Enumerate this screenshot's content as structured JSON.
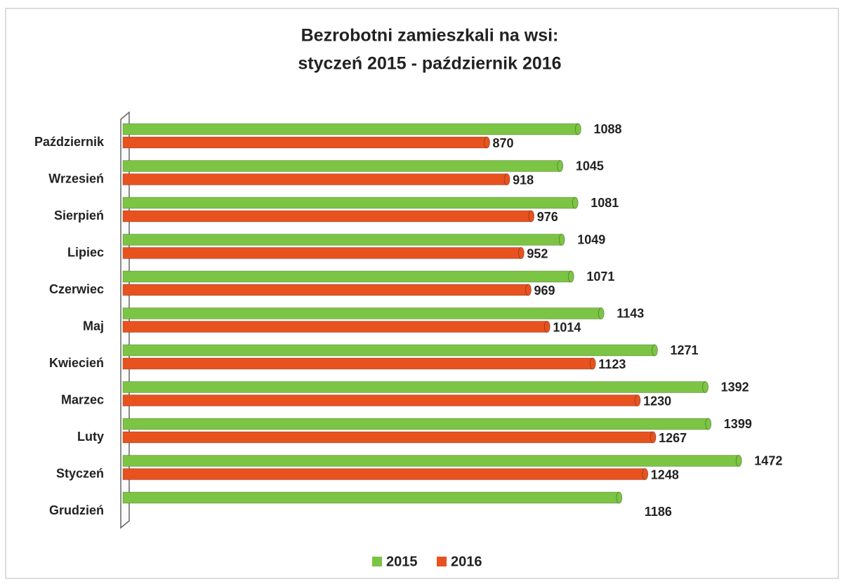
{
  "chart_data": {
    "type": "bar",
    "orientation": "horizontal",
    "title": "Bezrobotni zamieszkali na wsi:",
    "subtitle": "styczeń 2015 - październik 2016",
    "categories": [
      "Październik",
      "Wrzesień",
      "Sierpień",
      "Lipiec",
      "Czerwiec",
      "Maj",
      "Kwiecień",
      "Marzec",
      "Luty",
      "Styczeń",
      "Grudzień"
    ],
    "series": [
      {
        "name": "2015",
        "color": "#7cc444",
        "values": [
          1088,
          1045,
          1081,
          1049,
          1071,
          1143,
          1271,
          1392,
          1399,
          1472,
          1186
        ]
      },
      {
        "name": "2016",
        "color": "#e8521f",
        "values": [
          870,
          918,
          976,
          952,
          969,
          1014,
          1123,
          1230,
          1267,
          1248,
          null
        ]
      }
    ],
    "legend": "bottom"
  }
}
